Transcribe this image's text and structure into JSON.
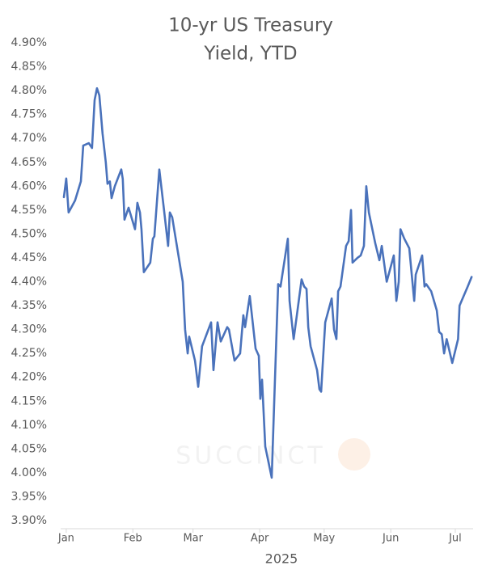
{
  "chart_data": {
    "type": "line",
    "title": [
      "10-yr US Treasury",
      "Yield, YTD"
    ],
    "x_label": "2025",
    "watermark": "SUCCINCT",
    "color": "#4a72bb",
    "grid": false,
    "xlim": [
      -1.6,
      190.3
    ],
    "xticks": [
      {
        "value": 1,
        "label": "Jan"
      },
      {
        "value": 32,
        "label": "Feb"
      },
      {
        "value": 60,
        "label": "Mar"
      },
      {
        "value": 91,
        "label": "Apr"
      },
      {
        "value": 121,
        "label": "May"
      },
      {
        "value": 152,
        "label": "Jun"
      },
      {
        "value": 182,
        "label": "Jul"
      }
    ],
    "ylim": [
      3.9,
      4.9
    ],
    "yticks": [
      {
        "value": 3.9,
        "label": "3.90%"
      },
      {
        "value": 3.95,
        "label": "3.95%"
      },
      {
        "value": 4.0,
        "label": "4.00%"
      },
      {
        "value": 4.05,
        "label": "4.05%"
      },
      {
        "value": 4.1,
        "label": "4.10%"
      },
      {
        "value": 4.15,
        "label": "4.15%"
      },
      {
        "value": 4.2,
        "label": "4.20%"
      },
      {
        "value": 4.25,
        "label": "4.25%"
      },
      {
        "value": 4.3,
        "label": "4.30%"
      },
      {
        "value": 4.35,
        "label": "4.35%"
      },
      {
        "value": 4.4,
        "label": "4.40%"
      },
      {
        "value": 4.45,
        "label": "4.45%"
      },
      {
        "value": 4.5,
        "label": "4.50%"
      },
      {
        "value": 4.55,
        "label": "4.55%"
      },
      {
        "value": 4.6,
        "label": "4.60%"
      },
      {
        "value": 4.65,
        "label": "4.65%"
      },
      {
        "value": 4.7,
        "label": "4.70%"
      },
      {
        "value": 4.75,
        "label": "4.75%"
      },
      {
        "value": 4.8,
        "label": "4.80%"
      },
      {
        "value": 4.85,
        "label": "4.85%"
      },
      {
        "value": 4.9,
        "label": "4.90%"
      }
    ],
    "x": [
      -0.1,
      1.0,
      2.1,
      5.1,
      7.8,
      8.9,
      11.5,
      13.0,
      14.2,
      15.3,
      16.4,
      17.9,
      19.4,
      20.2,
      21.3,
      22.1,
      23.6,
      26.6,
      27.3,
      28.1,
      30.0,
      33.0,
      34.1,
      35.3,
      36.0,
      37.1,
      40.1,
      41.3,
      42.0,
      44.3,
      46.5,
      48.4,
      49.2,
      50.3,
      55.2,
      56.3,
      57.5,
      58.2,
      60.9,
      62.4,
      64.2,
      68.4,
      69.5,
      71.4,
      72.9,
      75.9,
      76.7,
      79.3,
      81.9,
      83.4,
      84.2,
      86.4,
      89.1,
      90.6,
      91.3,
      92.1,
      93.6,
      96.6,
      97.7,
      99.6,
      100.7,
      104.1,
      104.9,
      106.8,
      108.3,
      110.5,
      111.7,
      112.8,
      113.6,
      114.7,
      117.7,
      118.8,
      119.6,
      120.3,
      121.5,
      123.0,
      124.5,
      125.6,
      126.7,
      127.5,
      128.6,
      131.2,
      132.4,
      133.5,
      134.2,
      136.5,
      138.0,
      139.5,
      140.6,
      141.8,
      144.8,
      146.7,
      147.8,
      150.1,
      153.4,
      154.6,
      155.7,
      156.5,
      158.3,
      160.6,
      162.9,
      163.6,
      166.6,
      167.7,
      168.5,
      170.8,
      173.4,
      174.5,
      175.7,
      176.8,
      178.0,
      180.6,
      183.3,
      184.0,
      187.8,
      189.6
    ],
    "values": [
      4.577,
      4.616,
      4.545,
      4.57,
      4.61,
      4.685,
      4.69,
      4.68,
      4.78,
      4.805,
      4.79,
      4.71,
      4.65,
      4.605,
      4.61,
      4.575,
      4.6,
      4.635,
      4.615,
      4.53,
      4.555,
      4.51,
      4.565,
      4.545,
      4.51,
      4.42,
      4.44,
      4.49,
      4.495,
      4.635,
      4.55,
      4.475,
      4.545,
      4.535,
      4.4,
      4.3,
      4.25,
      4.285,
      4.235,
      4.18,
      4.265,
      4.315,
      4.215,
      4.315,
      4.275,
      4.305,
      4.3,
      4.235,
      4.25,
      4.33,
      4.305,
      4.37,
      4.26,
      4.245,
      4.155,
      4.195,
      4.055,
      3.99,
      4.14,
      4.395,
      4.39,
      4.49,
      4.36,
      4.28,
      4.33,
      4.405,
      4.39,
      4.385,
      4.305,
      4.265,
      4.215,
      4.175,
      4.17,
      4.225,
      4.315,
      4.34,
      4.365,
      4.3,
      4.28,
      4.38,
      4.39,
      4.475,
      4.485,
      4.55,
      4.44,
      4.45,
      4.455,
      4.475,
      4.6,
      4.545,
      4.48,
      4.445,
      4.475,
      4.4,
      4.455,
      4.36,
      4.4,
      4.51,
      4.49,
      4.47,
      4.36,
      4.415,
      4.455,
      4.39,
      4.395,
      4.38,
      4.34,
      4.295,
      4.29,
      4.25,
      4.28,
      4.23,
      4.28,
      4.35,
      4.39,
      4.41
    ]
  }
}
